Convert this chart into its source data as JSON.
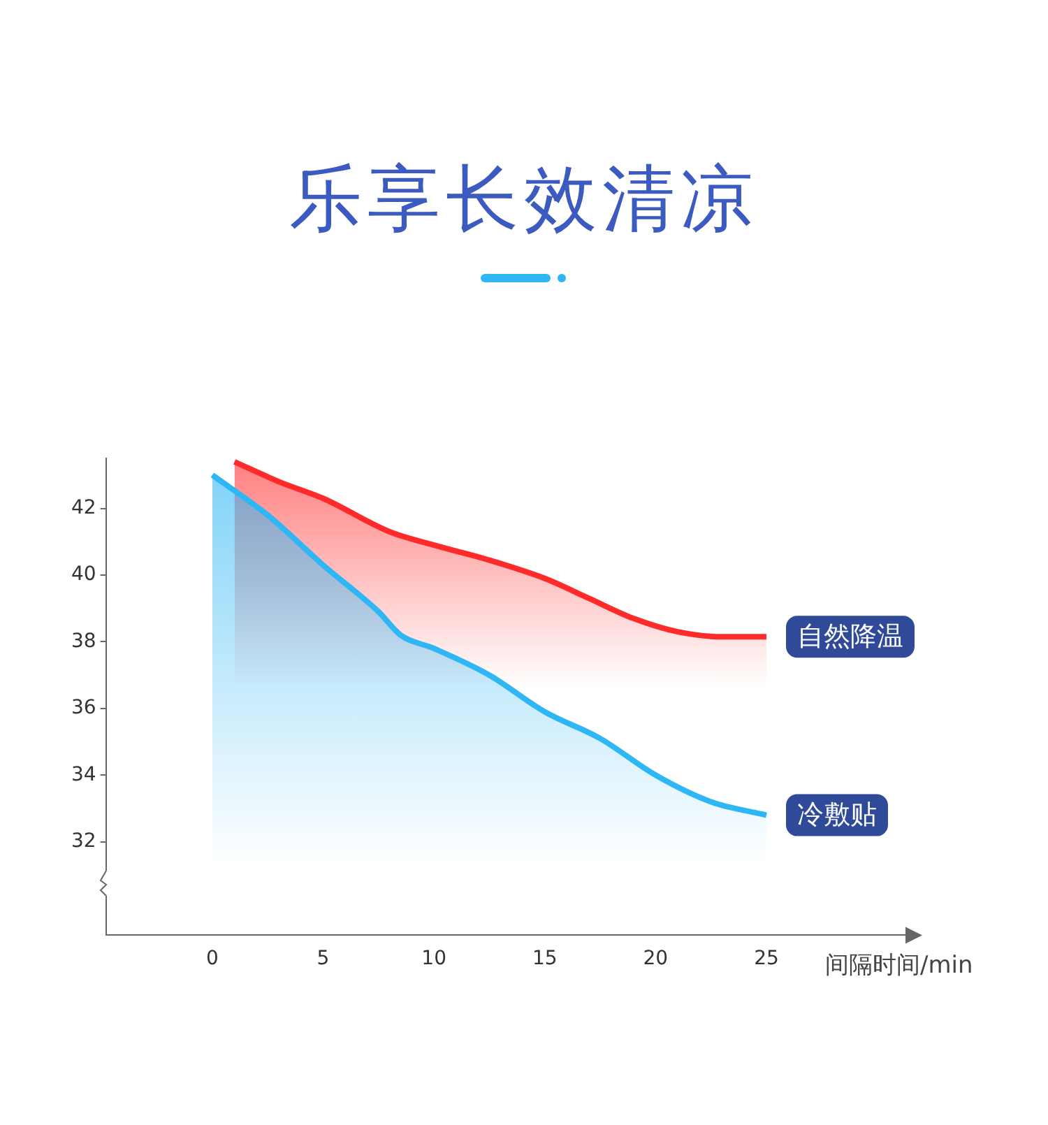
{
  "chart_data": {
    "type": "area",
    "title": "乐享长效清凉",
    "xlabel": "间隔时间/min",
    "xlim": [
      -4.8,
      31.4
    ],
    "xticks": [
      0,
      5,
      10,
      15,
      20,
      25
    ],
    "ylim": [
      29.2,
      43.5
    ],
    "yticks": [
      32,
      34,
      36,
      38,
      40,
      42
    ],
    "grid": false,
    "legend": false,
    "marker": "none",
    "series": [
      {
        "name": "自然降温",
        "color": "#ff2a2a",
        "x": [
          1,
          3,
          5,
          8,
          10,
          12.5,
          15,
          17,
          19,
          21,
          23,
          25
        ],
        "values": [
          43.4,
          42.8,
          42.3,
          41.3,
          40.9,
          40.45,
          39.9,
          39.3,
          38.7,
          38.3,
          38.15,
          38.15
        ]
      },
      {
        "name": "冷敷贴",
        "color": "#2fb6f4",
        "x": [
          0,
          2.5,
          5,
          7.5,
          8.5,
          10,
          12.5,
          15,
          17.5,
          20,
          22.5,
          25
        ],
        "values": [
          43.0,
          41.8,
          40.3,
          38.9,
          38.2,
          37.8,
          37.0,
          35.9,
          35.1,
          34.0,
          33.2,
          32.8
        ]
      }
    ]
  }
}
